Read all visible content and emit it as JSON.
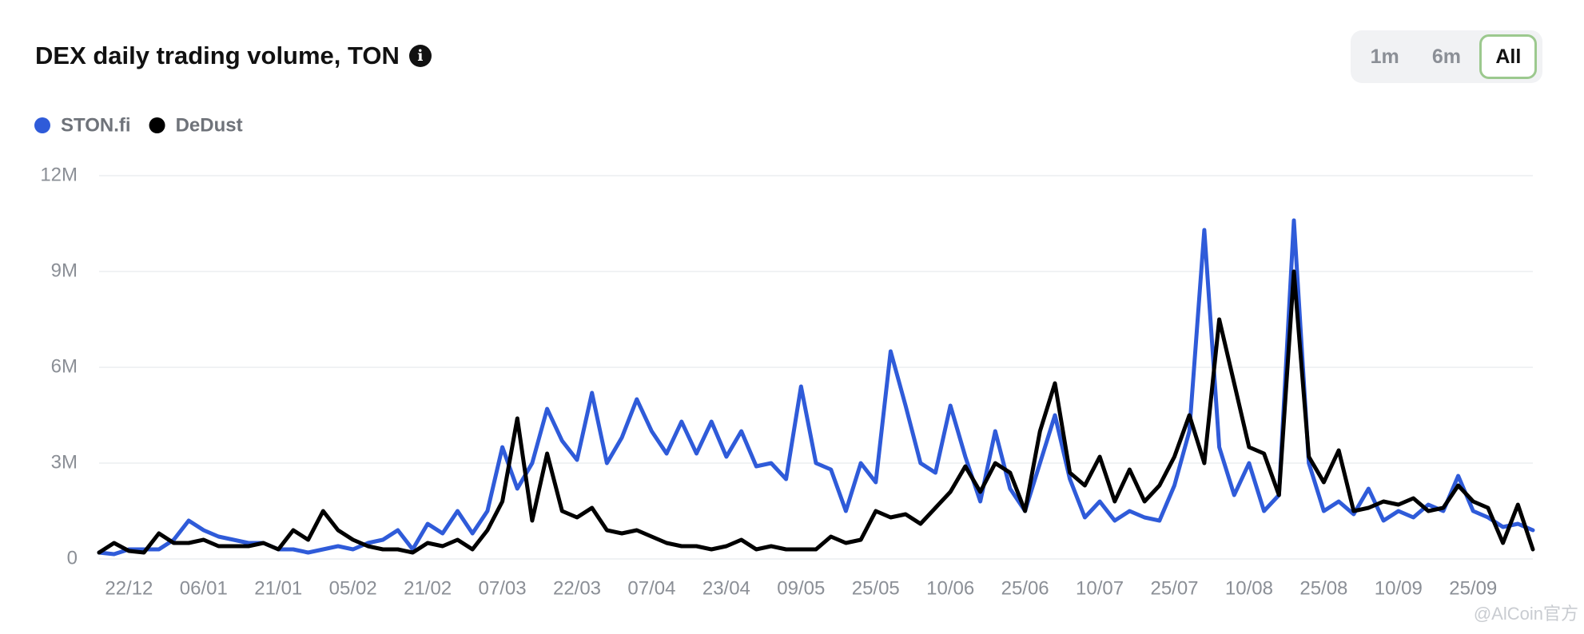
{
  "chart_data": {
    "type": "line",
    "title": "DEX daily trading volume, TON",
    "controls": [
      "1m",
      "6m",
      "All"
    ],
    "active_control": 2,
    "watermark": "@AlCoin官方",
    "categories": [
      null,
      null,
      "22/12",
      null,
      null,
      null,
      null,
      "06/01",
      null,
      null,
      null,
      null,
      "21/01",
      null,
      null,
      null,
      null,
      "05/02",
      null,
      null,
      null,
      null,
      "21/02",
      null,
      null,
      null,
      null,
      "07/03",
      null,
      null,
      null,
      null,
      "22/03",
      null,
      null,
      null,
      null,
      "07/04",
      null,
      null,
      null,
      null,
      "23/04",
      null,
      null,
      null,
      null,
      "09/05",
      null,
      null,
      null,
      null,
      "25/05",
      null,
      null,
      null,
      null,
      "10/06",
      null,
      null,
      null,
      null,
      "25/06",
      null,
      null,
      null,
      null,
      "10/07",
      null,
      null,
      null,
      null,
      "25/07",
      null,
      null,
      null,
      null,
      "10/08",
      null,
      null,
      null,
      null,
      "25/08",
      null,
      null,
      null,
      null,
      "10/09",
      null,
      null,
      null,
      null,
      "25/09",
      null,
      null,
      null,
      null
    ],
    "series": [
      {
        "name": "STON.fi",
        "color": "#2f5bd9",
        "values": [
          0.2,
          0.15,
          0.3,
          0.3,
          0.3,
          0.6,
          1.2,
          0.9,
          0.7,
          0.6,
          0.5,
          0.5,
          0.3,
          0.3,
          0.2,
          0.3,
          0.4,
          0.3,
          0.5,
          0.6,
          0.9,
          0.3,
          1.1,
          0.8,
          1.5,
          0.8,
          1.5,
          3.5,
          2.2,
          3.0,
          4.7,
          3.7,
          3.1,
          5.2,
          3.0,
          3.8,
          5.0,
          4.0,
          3.3,
          4.3,
          3.3,
          4.3,
          3.2,
          4.0,
          2.9,
          3.0,
          2.5,
          5.4,
          3.0,
          2.8,
          1.5,
          3.0,
          2.4,
          6.5,
          4.8,
          3.0,
          2.7,
          4.8,
          3.2,
          1.8,
          4.0,
          2.2,
          1.5,
          3.0,
          4.5,
          2.5,
          1.3,
          1.8,
          1.2,
          1.5,
          1.3,
          1.2,
          2.3,
          4.0,
          10.3,
          3.5,
          2.0,
          3.0,
          1.5,
          2.0,
          10.6,
          3.0,
          1.5,
          1.8,
          1.4,
          2.2,
          1.2,
          1.5,
          1.3,
          1.7,
          1.5,
          2.6,
          1.5,
          1.3,
          1.0,
          1.1,
          0.9
        ]
      },
      {
        "name": "DeDust",
        "color": "#000000",
        "values": [
          0.2,
          0.5,
          0.25,
          0.2,
          0.8,
          0.5,
          0.5,
          0.6,
          0.4,
          0.4,
          0.4,
          0.5,
          0.3,
          0.9,
          0.6,
          1.5,
          0.9,
          0.6,
          0.4,
          0.3,
          0.3,
          0.2,
          0.5,
          0.4,
          0.6,
          0.3,
          0.9,
          1.8,
          4.4,
          1.2,
          3.3,
          1.5,
          1.3,
          1.6,
          0.9,
          0.8,
          0.9,
          0.7,
          0.5,
          0.4,
          0.4,
          0.3,
          0.4,
          0.6,
          0.3,
          0.4,
          0.3,
          0.3,
          0.3,
          0.7,
          0.5,
          0.6,
          1.5,
          1.3,
          1.4,
          1.1,
          1.6,
          2.1,
          2.9,
          2.1,
          3.0,
          2.7,
          1.5,
          4.0,
          5.5,
          2.7,
          2.3,
          3.2,
          1.8,
          2.8,
          1.8,
          2.3,
          3.2,
          4.5,
          3.0,
          7.5,
          5.5,
          3.5,
          3.3,
          2.0,
          9.0,
          3.2,
          2.4,
          3.4,
          1.5,
          1.6,
          1.8,
          1.7,
          1.9,
          1.5,
          1.6,
          2.3,
          1.8,
          1.6,
          0.5,
          1.7,
          0.3
        ]
      }
    ],
    "ylim": [
      0,
      12
    ],
    "yticks": [
      0,
      {
        "value": 3,
        "label": "3M"
      },
      {
        "value": 6,
        "label": "6M"
      },
      {
        "value": 9,
        "label": "9M"
      },
      {
        "value": 12,
        "label": "12M"
      }
    ],
    "grid": true
  }
}
